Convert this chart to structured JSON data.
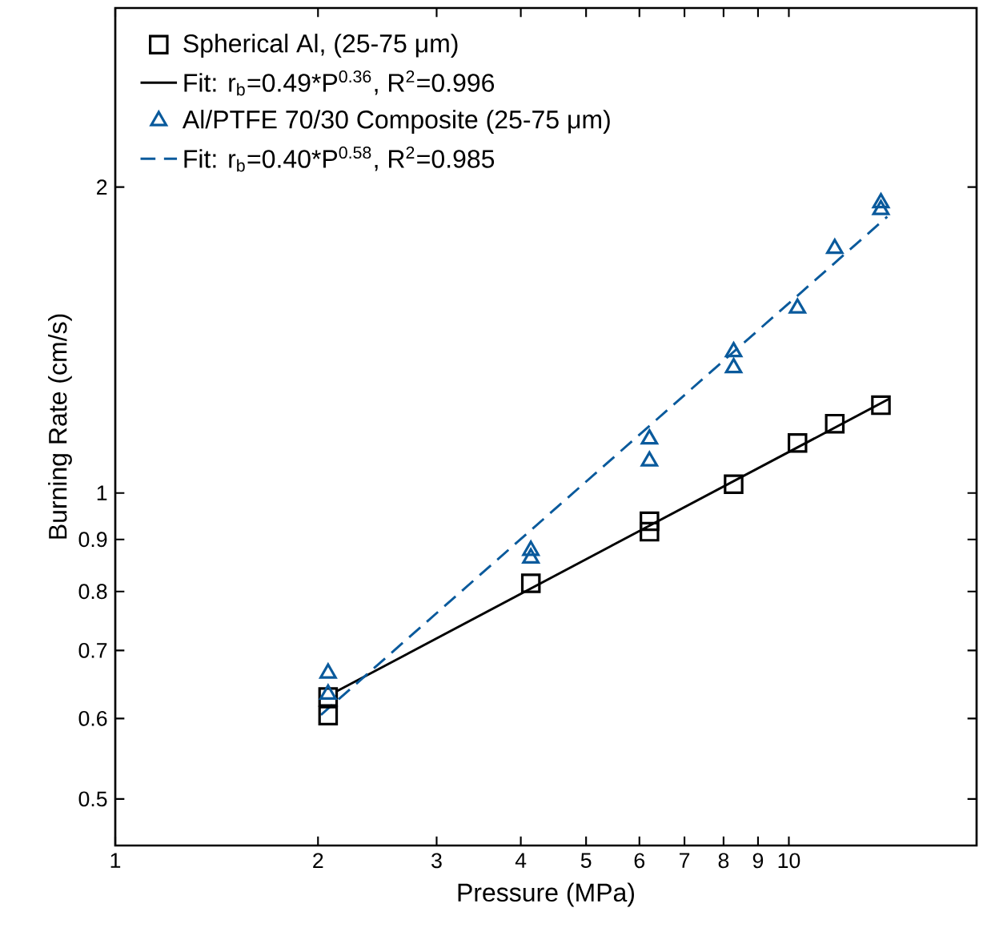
{
  "chart_data": {
    "type": "scatter",
    "xlabel": "Pressure (MPa)",
    "ylabel": "Burning Rate (cm/s)",
    "log": "xy",
    "xlim": [
      1,
      19
    ],
    "ylim": [
      0.45,
      3
    ],
    "xticks": [
      1,
      2,
      3,
      4,
      5,
      6,
      7,
      8,
      9,
      10
    ],
    "yticks": [
      0.5,
      0.6,
      0.7,
      0.8,
      0.9,
      1,
      2
    ],
    "grid": false,
    "legend": "top left",
    "series": [
      {
        "name": "Spherical Al, (25-75 μm)",
        "marker": "square",
        "color": "#000000",
        "x": [
          2.07,
          2.07,
          4.14,
          6.21,
          6.21,
          8.28,
          10.3,
          11.7,
          13.7
        ],
        "values": [
          0.604,
          0.63,
          0.815,
          0.938,
          0.916,
          1.02,
          1.12,
          1.17,
          1.22
        ]
      },
      {
        "name": "Fit: r$_{b}$=0.49*P$^{0.36}$, R$^{2}$=0.996",
        "type": "line",
        "marker": "none",
        "line_style": "solid",
        "color": "#000000",
        "x": [
          2.13,
          14.1
        ],
        "values": [
          0.638,
          1.238
        ]
      },
      {
        "name": "Al/PTFE 70/30 Composite (25-75 μm)",
        "marker": "triangle",
        "color": "#0a5a9c",
        "x": [
          2.07,
          2.07,
          4.14,
          4.14,
          6.21,
          6.21,
          8.28,
          8.28,
          10.3,
          11.7,
          13.7,
          13.7
        ],
        "values": [
          0.665,
          0.634,
          0.878,
          0.863,
          1.13,
          1.075,
          1.377,
          1.328,
          1.52,
          1.74,
          1.93,
          1.9
        ]
      },
      {
        "name": "Fit: r$_{b}$=0.40*P$^{0.58}$, R$^{2}$=0.985",
        "type": "line",
        "marker": "none",
        "line_style": "dashed",
        "color": "#0a5a9c",
        "x": [
          2.02,
          14.0
        ],
        "values": [
          0.605,
          1.87
        ]
      }
    ]
  }
}
